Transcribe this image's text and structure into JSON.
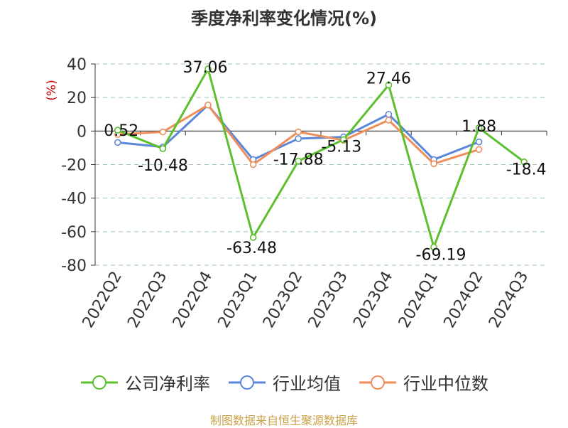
{
  "chart_data": {
    "type": "line",
    "title": "季度净利率变化情况(%)",
    "ylabel": "(%)",
    "xlabel": "",
    "categories": [
      "2022Q2",
      "2022Q3",
      "2022Q4",
      "2023Q1",
      "2023Q2",
      "2023Q3",
      "2023Q4",
      "2024Q1",
      "2024Q2",
      "2024Q3"
    ],
    "ylim": [
      -80,
      40
    ],
    "yticks": [
      40,
      20,
      0,
      -20,
      -40,
      -60,
      -80
    ],
    "grid": true,
    "legend_position": "bottom",
    "series": [
      {
        "name": "公司净利率",
        "color": "#5cbf2c",
        "values": [
          0.52,
          -10.48,
          37.06,
          -63.48,
          -17.88,
          -5.13,
          27.46,
          -69.19,
          1.88,
          -18.4
        ],
        "labels": [
          "0.52",
          "-10.48",
          "37.06",
          "-63.48",
          "-17.88",
          "-5.13",
          "27.46",
          "-69.19",
          "1.88",
          "-18.4"
        ]
      },
      {
        "name": "行业均值",
        "color": "#5b87d8",
        "values": [
          -6.8,
          -9.5,
          15.5,
          -17.0,
          -4.5,
          -3.5,
          10.0,
          -17.0,
          -6.5,
          null
        ]
      },
      {
        "name": "行业中位数",
        "color": "#f08e5a",
        "values": [
          -2.0,
          -0.5,
          15.5,
          -20.0,
          -0.5,
          -5.5,
          6.5,
          -19.5,
          -11.0,
          null
        ]
      }
    ]
  },
  "source_text": "制图数据来自恒生聚源数据库",
  "colors": {
    "title": "#333333",
    "ylabel": "#cc0000",
    "axis": "#333333",
    "grid": "#9cc3b3",
    "source": "#c9a24a"
  }
}
